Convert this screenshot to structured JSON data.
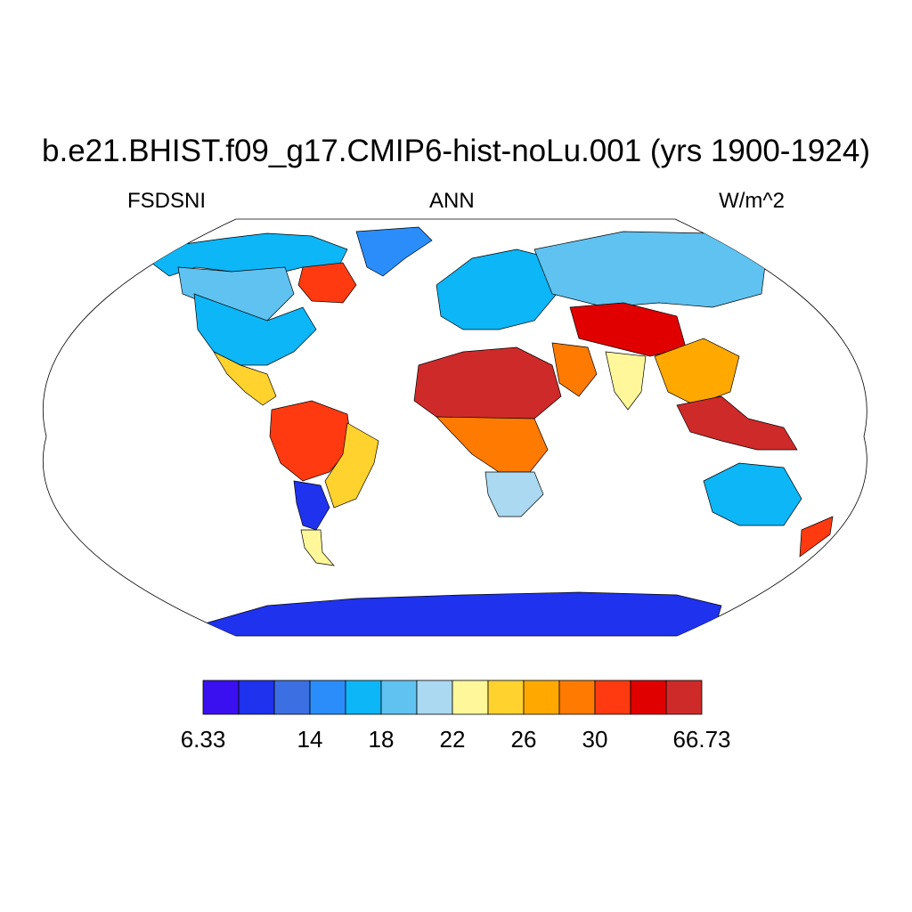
{
  "title": "b.e21.BHIST.f09_g17.CMIP6-hist-noLu.001 (yrs 1900-1924)",
  "left_label": "FSDSNI",
  "center_label": "ANN",
  "right_label": "W/m^2",
  "colorbar": {
    "colors": [
      "#3b10f0",
      "#1f32ee",
      "#3c6fe2",
      "#2a8dfa",
      "#0db6f6",
      "#5fc2f0",
      "#aad9f1",
      "#fff799",
      "#ffd22e",
      "#ffa800",
      "#ff7a00",
      "#ff3a10",
      "#e00000",
      "#cf2a2a"
    ],
    "tick_labels": [
      {
        "after_bin": 0,
        "text": "6.33"
      },
      {
        "after_bin": 3,
        "text": "14"
      },
      {
        "after_bin": 5,
        "text": "18"
      },
      {
        "after_bin": 7,
        "text": "22"
      },
      {
        "after_bin": 9,
        "text": "26"
      },
      {
        "after_bin": 11,
        "text": "30"
      },
      {
        "after_bin": 14,
        "text": "66.73"
      }
    ]
  },
  "map_regions": [
    {
      "name": "north-america-high-latitudes",
      "level": 4
    },
    {
      "name": "canada-interior",
      "level": 5
    },
    {
      "name": "hudson-bay-east",
      "level": 11
    },
    {
      "name": "greenland",
      "level": 3
    },
    {
      "name": "united-states",
      "level": 4
    },
    {
      "name": "mexico-central-america",
      "level": 8
    },
    {
      "name": "amazon-basin",
      "level": 11
    },
    {
      "name": "brazil-east",
      "level": 8
    },
    {
      "name": "andes",
      "level": 1
    },
    {
      "name": "patagonia",
      "level": 7
    },
    {
      "name": "europe",
      "level": 4
    },
    {
      "name": "siberia",
      "level": 5
    },
    {
      "name": "sahara",
      "level": 13
    },
    {
      "name": "central-africa",
      "level": 10
    },
    {
      "name": "southern-africa",
      "level": 6
    },
    {
      "name": "arabia",
      "level": 10
    },
    {
      "name": "tibetan-plateau",
      "level": 12
    },
    {
      "name": "india",
      "level": 7
    },
    {
      "name": "southeast-asia",
      "level": 9
    },
    {
      "name": "maritime-continent",
      "level": 13
    },
    {
      "name": "australia",
      "level": 4
    },
    {
      "name": "new-zealand",
      "level": 11
    },
    {
      "name": "antarctica",
      "level": 1
    }
  ]
}
